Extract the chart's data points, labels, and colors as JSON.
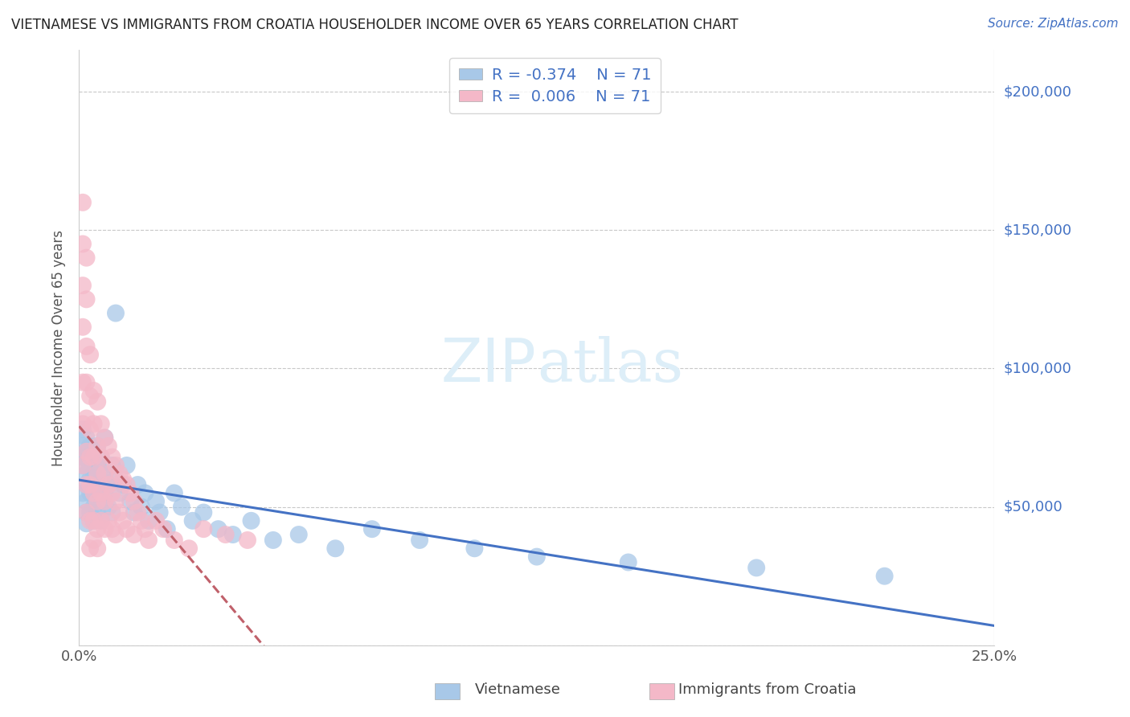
{
  "title": "VIETNAMESE VS IMMIGRANTS FROM CROATIA HOUSEHOLDER INCOME OVER 65 YEARS CORRELATION CHART",
  "source": "Source: ZipAtlas.com",
  "ylabel": "Householder Income Over 65 years",
  "xlim": [
    0.0,
    0.25
  ],
  "ylim": [
    0,
    215000
  ],
  "yticks": [
    0,
    50000,
    100000,
    150000,
    200000
  ],
  "ytick_labels": [
    "",
    "$50,000",
    "$100,000",
    "$150,000",
    "$200,000"
  ],
  "color_vietnamese": "#a8c8e8",
  "color_croatia": "#f4b8c8",
  "color_reg_vietnamese": "#4472c4",
  "color_reg_croatia": "#c0606a",
  "background_color": "#ffffff",
  "grid_color": "#c8c8c8",
  "title_color": "#222222",
  "ytick_color": "#4472c4",
  "source_color": "#4472c4",
  "watermark_color": "#ddeef8",
  "vietnamese_x": [
    0.001,
    0.001,
    0.001,
    0.001,
    0.001,
    0.002,
    0.002,
    0.002,
    0.002,
    0.002,
    0.002,
    0.002,
    0.003,
    0.003,
    0.003,
    0.003,
    0.003,
    0.003,
    0.003,
    0.004,
    0.004,
    0.004,
    0.004,
    0.004,
    0.005,
    0.005,
    0.005,
    0.005,
    0.005,
    0.006,
    0.006,
    0.006,
    0.006,
    0.007,
    0.007,
    0.007,
    0.008,
    0.008,
    0.009,
    0.009,
    0.01,
    0.01,
    0.011,
    0.012,
    0.013,
    0.014,
    0.015,
    0.016,
    0.017,
    0.018,
    0.019,
    0.021,
    0.022,
    0.024,
    0.026,
    0.028,
    0.031,
    0.034,
    0.038,
    0.042,
    0.047,
    0.053,
    0.06,
    0.07,
    0.08,
    0.093,
    0.108,
    0.125,
    0.15,
    0.185,
    0.22
  ],
  "vietnamese_y": [
    65000,
    72000,
    55000,
    68000,
    78000,
    58000,
    48000,
    62000,
    70000,
    52000,
    75000,
    44000,
    60000,
    68000,
    55000,
    72000,
    48000,
    58000,
    65000,
    55000,
    62000,
    50000,
    70000,
    45000,
    65000,
    55000,
    72000,
    48000,
    58000,
    60000,
    52000,
    68000,
    45000,
    62000,
    55000,
    75000,
    50000,
    58000,
    65000,
    48000,
    60000,
    120000,
    55000,
    58000,
    65000,
    52000,
    48000,
    58000,
    50000,
    55000,
    45000,
    52000,
    48000,
    42000,
    55000,
    50000,
    45000,
    48000,
    42000,
    40000,
    45000,
    38000,
    40000,
    35000,
    42000,
    38000,
    35000,
    32000,
    30000,
    28000,
    25000
  ],
  "croatia_x": [
    0.001,
    0.001,
    0.001,
    0.001,
    0.001,
    0.001,
    0.001,
    0.002,
    0.002,
    0.002,
    0.002,
    0.002,
    0.002,
    0.002,
    0.002,
    0.003,
    0.003,
    0.003,
    0.003,
    0.003,
    0.003,
    0.003,
    0.004,
    0.004,
    0.004,
    0.004,
    0.004,
    0.004,
    0.005,
    0.005,
    0.005,
    0.005,
    0.005,
    0.005,
    0.006,
    0.006,
    0.006,
    0.006,
    0.007,
    0.007,
    0.007,
    0.007,
    0.008,
    0.008,
    0.008,
    0.009,
    0.009,
    0.009,
    0.01,
    0.01,
    0.01,
    0.011,
    0.011,
    0.012,
    0.012,
    0.013,
    0.013,
    0.014,
    0.015,
    0.015,
    0.016,
    0.017,
    0.018,
    0.019,
    0.021,
    0.023,
    0.026,
    0.03,
    0.034,
    0.04,
    0.046
  ],
  "croatia_y": [
    160000,
    145000,
    130000,
    115000,
    95000,
    80000,
    65000,
    140000,
    125000,
    108000,
    95000,
    82000,
    70000,
    58000,
    48000,
    105000,
    90000,
    78000,
    68000,
    58000,
    45000,
    35000,
    92000,
    80000,
    68000,
    55000,
    45000,
    38000,
    88000,
    72000,
    62000,
    52000,
    42000,
    35000,
    80000,
    68000,
    55000,
    45000,
    75000,
    62000,
    52000,
    42000,
    72000,
    58000,
    45000,
    68000,
    55000,
    42000,
    65000,
    52000,
    40000,
    62000,
    48000,
    60000,
    45000,
    58000,
    42000,
    55000,
    52000,
    40000,
    48000,
    45000,
    42000,
    38000,
    45000,
    42000,
    38000,
    35000,
    42000,
    40000,
    38000
  ]
}
